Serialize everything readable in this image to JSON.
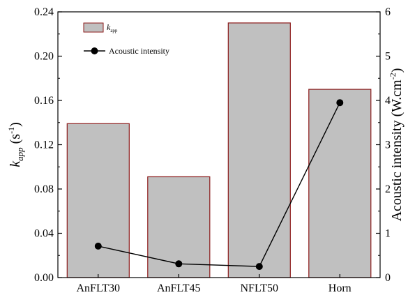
{
  "chart_data": {
    "type": "bar",
    "categories": [
      "AnFLT30",
      "AnFLT45",
      "NFLT50",
      "Horn"
    ],
    "series": [
      {
        "name": "k_app",
        "label_main": "k",
        "label_sub": "app",
        "type": "bar",
        "axis": "left",
        "values": [
          0.139,
          0.091,
          0.23,
          0.17
        ],
        "color": "#c0c0c0",
        "edge_color": "#8b1a1a"
      },
      {
        "name": "Acoustic intensity",
        "type": "line",
        "axis": "right",
        "values": [
          0.71,
          0.31,
          0.25,
          3.95
        ],
        "color": "#000000",
        "marker": "circle"
      }
    ],
    "y_left": {
      "label_main": "k",
      "label_sub": "app",
      "label_unit_open": " (s",
      "label_unit_sup": "-1",
      "label_unit_close": ")",
      "ylim": [
        0,
        0.24
      ],
      "ticks": [
        "0.00",
        "0.04",
        "0.08",
        "0.12",
        "0.16",
        "0.20",
        "0.24"
      ]
    },
    "y_right": {
      "label_main": "Acoustic intensity (W.cm",
      "label_sup": "-2",
      "label_close": ")",
      "ylim": [
        0,
        6
      ],
      "ticks": [
        "0",
        "1",
        "2",
        "3",
        "4",
        "5",
        "6"
      ]
    },
    "legend": {
      "position": "top-left"
    },
    "grid": false
  }
}
